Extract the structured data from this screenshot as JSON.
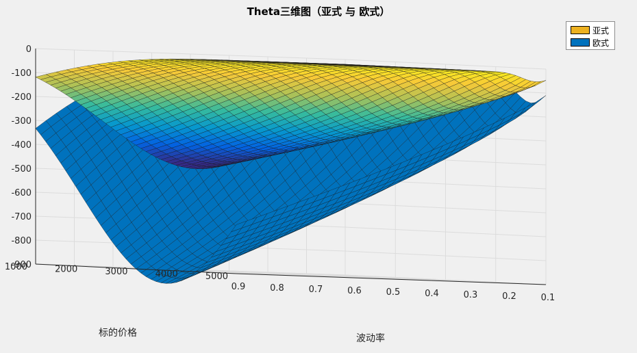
{
  "chart_data": {
    "type": "surface3d",
    "title": "Theta三维图（亚式 与 欧式）",
    "xlabel": "标的价格",
    "ylabel": "波动率",
    "zlabel": "",
    "x_ticks": [
      "1000",
      "2000",
      "3000",
      "4000",
      "5000"
    ],
    "y_ticks": [
      "0.9",
      "0.8",
      "0.7",
      "0.6",
      "0.5",
      "0.4",
      "0.3",
      "0.2",
      "0.1"
    ],
    "z_ticks": [
      "0",
      "-100",
      "-200",
      "-300",
      "-400",
      "-500",
      "-600",
      "-700",
      "-800",
      "-900"
    ],
    "xlim": [
      1000,
      5000
    ],
    "ylim": [
      0.1,
      0.9
    ],
    "zlim": [
      -900,
      0
    ],
    "grid": true,
    "legend_position": "top-right",
    "series": [
      {
        "name": "亚式",
        "color": "#EDB120",
        "colormap": "parula",
        "min_theta": -450,
        "theta_at_low_vol": -100
      },
      {
        "name": "欧式",
        "color": "#0072BD",
        "min_theta": -900,
        "theta_at_low_vol": -180
      }
    ]
  },
  "colors": {
    "background": "#f0f0f0",
    "grid": "#dcdcdc",
    "axis": "#262626",
    "mesh_line": "#1a1a1a"
  }
}
